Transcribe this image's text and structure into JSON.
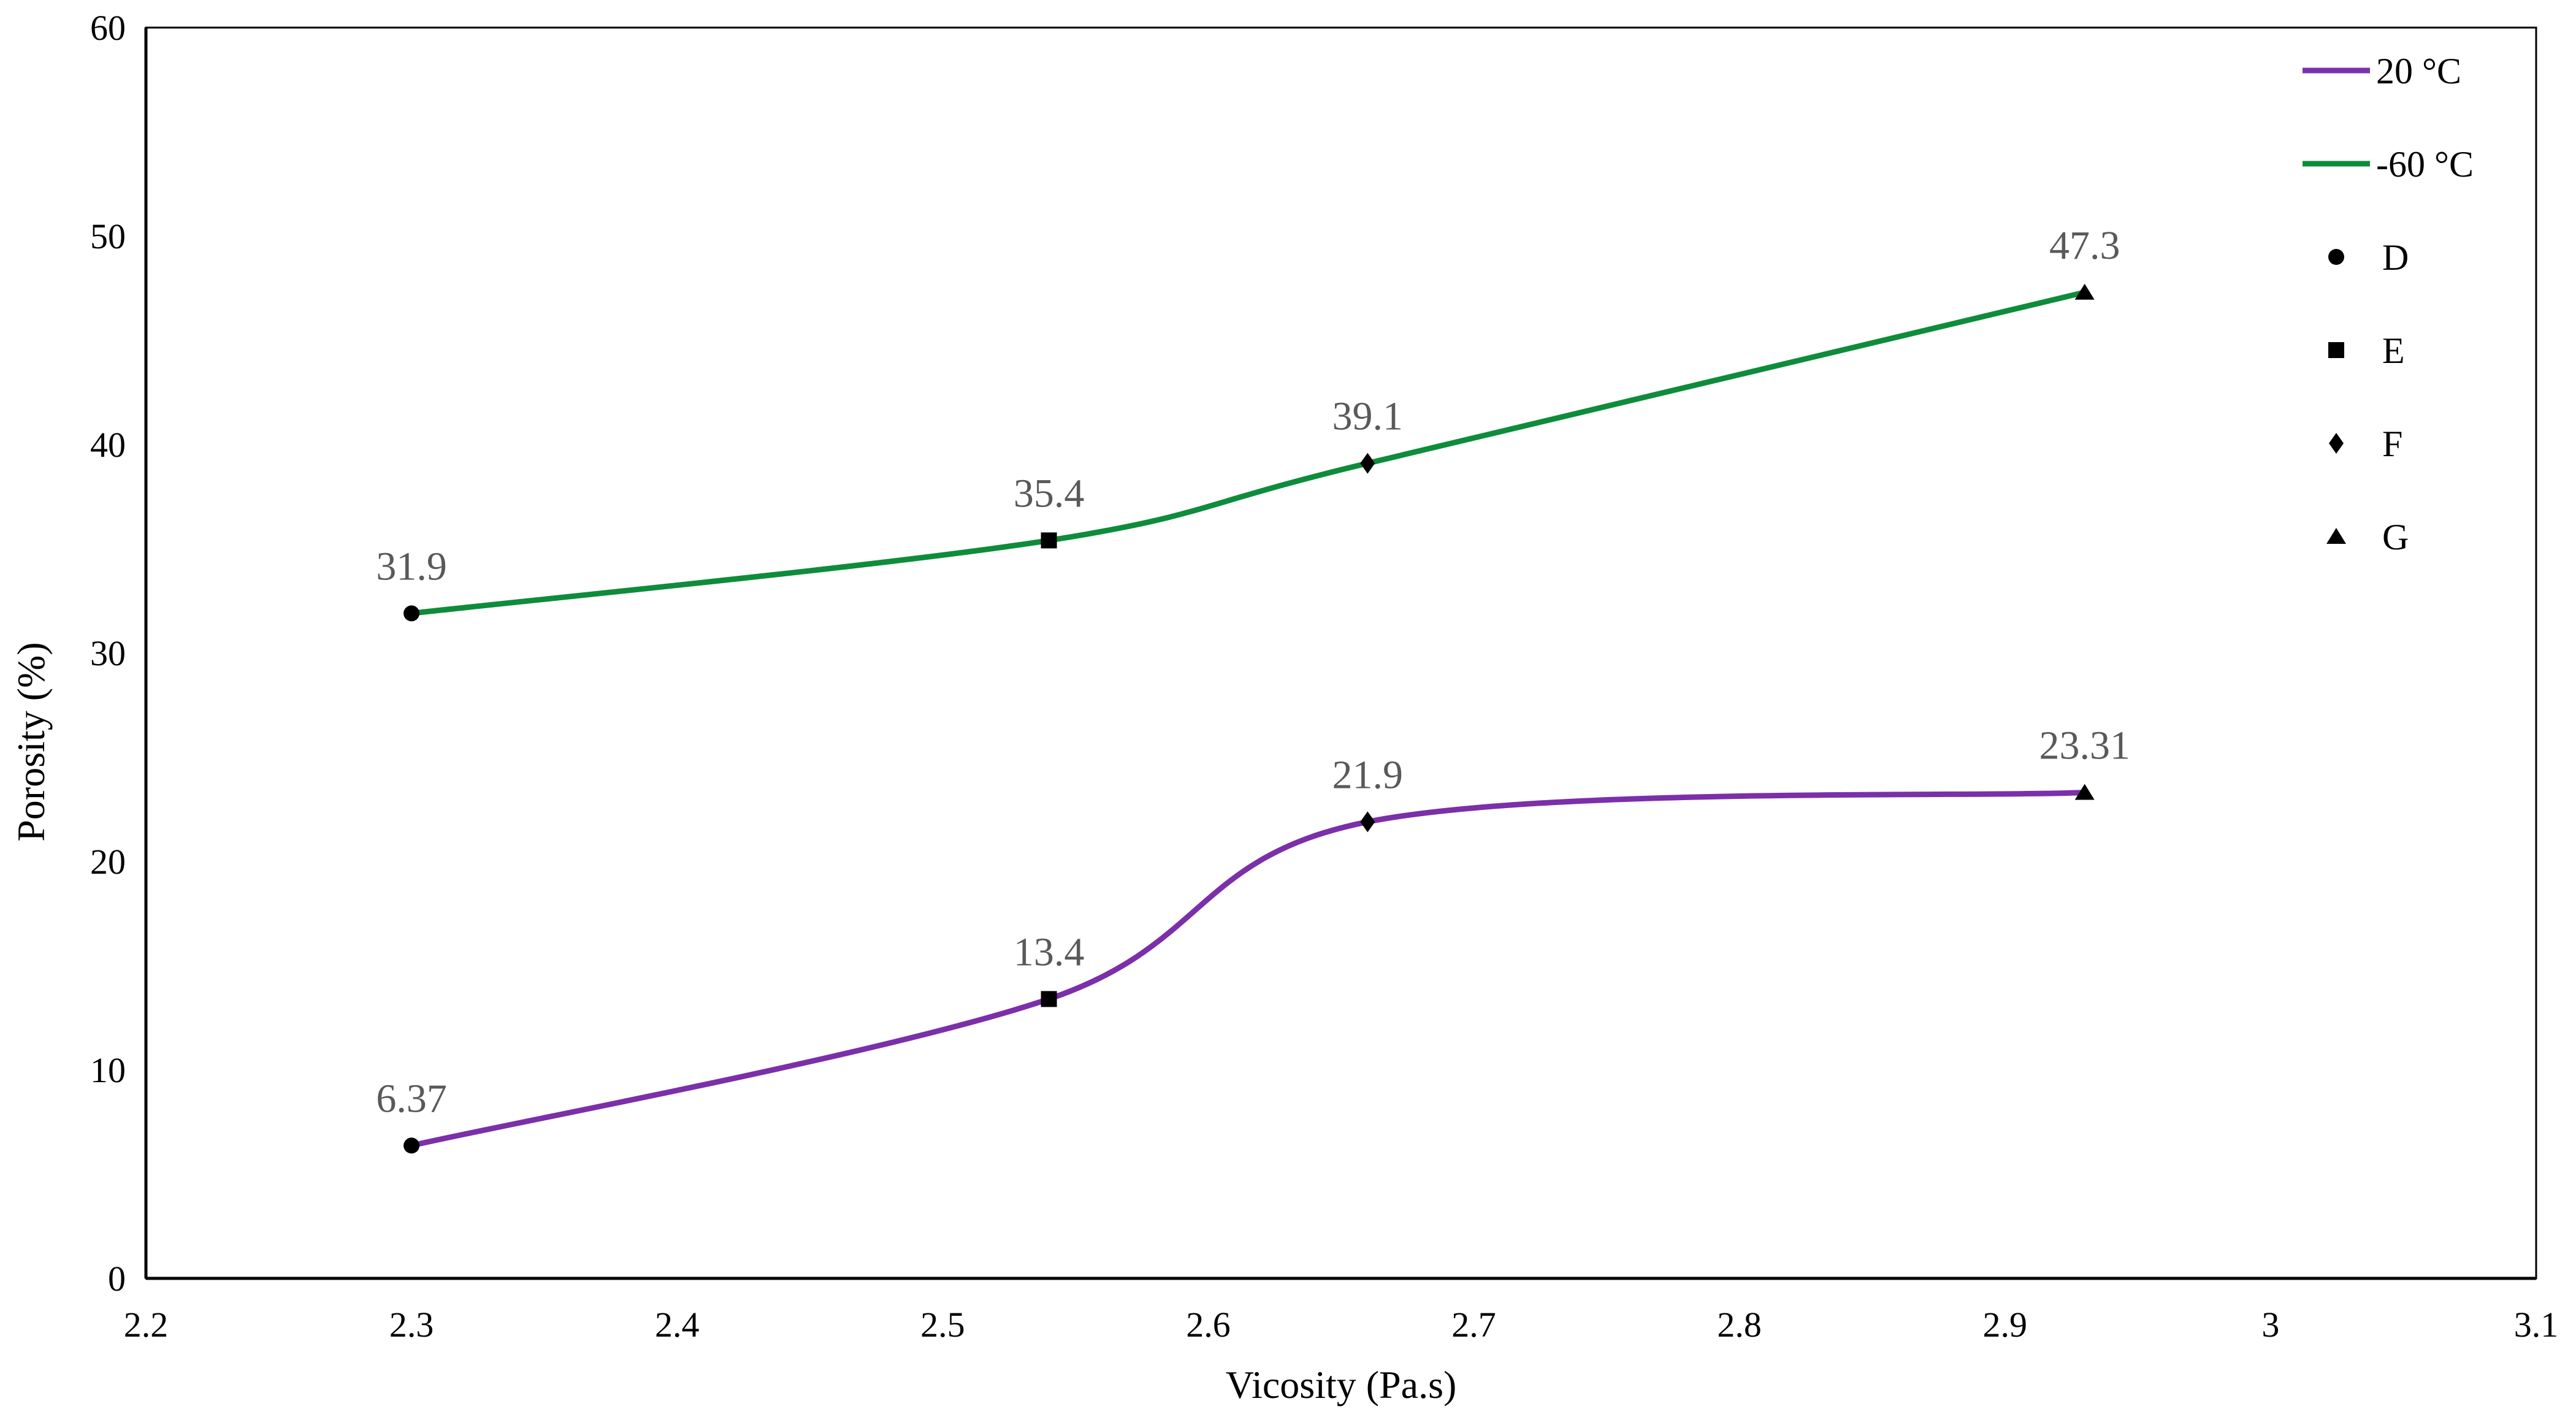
{
  "chart_data": {
    "type": "line",
    "title": "",
    "xlabel": "Vicosity (Pa.s)",
    "ylabel": "Porosity (%)",
    "xlim": [
      2.2,
      3.1
    ],
    "ylim": [
      0,
      60
    ],
    "x_tick_values": [
      2.2,
      2.3,
      2.4,
      2.5,
      2.6,
      2.7,
      2.8,
      2.9,
      3.0,
      3.1
    ],
    "x_tick_labels": [
      "2.2",
      "2.3",
      "2.4",
      "2.5",
      "2.6",
      "2.7",
      "2.8",
      "2.9",
      "3",
      "3.1"
    ],
    "y_tick_values": [
      0,
      10,
      20,
      30,
      40,
      50,
      60
    ],
    "y_tick_labels": [
      "0",
      "10",
      "20",
      "30",
      "40",
      "50",
      "60"
    ],
    "grid": false,
    "legend_position": "inside-top-right",
    "x": [
      2.3,
      2.54,
      2.66,
      2.93
    ],
    "series": [
      {
        "name": "20 °C",
        "color": "#7B2FA9",
        "values": [
          6.37,
          13.4,
          21.9,
          23.31
        ],
        "point_labels": [
          "6.37",
          "13.4",
          "21.9",
          "23.31"
        ]
      },
      {
        "name": "-60 °C",
        "color": "#0E8C3C",
        "values": [
          31.9,
          35.4,
          39.1,
          47.3
        ],
        "point_labels": [
          "31.9",
          "35.4",
          "39.1",
          "47.3"
        ]
      }
    ],
    "point_markers": [
      {
        "shape": "circle",
        "legend_label": "D"
      },
      {
        "shape": "square",
        "legend_label": "E"
      },
      {
        "shape": "diamond",
        "legend_label": "F"
      },
      {
        "shape": "triangle",
        "legend_label": "G"
      }
    ],
    "marker_color": "#000000",
    "data_label_color": "#595959",
    "axis_color": "#000000",
    "background_color": "#FFFFFF"
  }
}
